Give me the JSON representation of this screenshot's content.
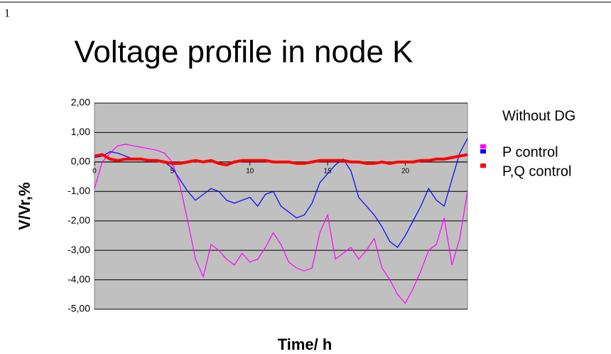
{
  "page_number": "1",
  "chart_data": {
    "type": "line",
    "title": "Voltage profile in node K",
    "x_label": "Time/ h",
    "y_label": "V/Vr,%",
    "x": [
      0,
      0.5,
      1,
      1.5,
      2,
      2.5,
      3,
      3.5,
      4,
      4.5,
      5,
      5.5,
      6,
      6.5,
      7,
      7.5,
      8,
      8.5,
      9,
      9.5,
      10,
      10.5,
      11,
      11.5,
      12,
      12.5,
      13,
      13.5,
      14,
      14.5,
      15,
      15.5,
      16,
      16.5,
      17,
      17.5,
      18,
      18.5,
      19,
      19.5,
      20,
      20.5,
      21,
      21.5,
      22,
      22.5,
      23,
      23.5,
      24
    ],
    "series": [
      {
        "name": "Without DG",
        "color": "#ff00ff",
        "values": [
          -0.9,
          0.0,
          0.3,
          0.55,
          0.6,
          0.55,
          0.5,
          0.45,
          0.4,
          0.3,
          0.0,
          -0.8,
          -2.0,
          -3.3,
          -3.9,
          -2.8,
          -3.0,
          -3.3,
          -3.5,
          -3.1,
          -3.4,
          -3.3,
          -2.9,
          -2.4,
          -2.8,
          -3.4,
          -3.6,
          -3.7,
          -3.6,
          -2.4,
          -1.8,
          -3.3,
          -3.1,
          -2.9,
          -3.3,
          -3.0,
          -2.6,
          -3.6,
          -4.0,
          -4.5,
          -4.8,
          -4.3,
          -3.7,
          -3.0,
          -2.8,
          -1.9,
          -3.5,
          -2.6,
          -1.0
        ]
      },
      {
        "name": "P control",
        "color": "#0000ff",
        "values": [
          0.15,
          0.2,
          0.35,
          0.3,
          0.2,
          0.1,
          0.1,
          0.05,
          0.05,
          0.0,
          -0.2,
          -0.6,
          -1.0,
          -1.3,
          -1.1,
          -0.9,
          -1.0,
          -1.3,
          -1.4,
          -1.3,
          -1.2,
          -1.5,
          -1.1,
          -1.0,
          -1.5,
          -1.7,
          -1.9,
          -1.8,
          -1.4,
          -0.7,
          -0.4,
          -0.1,
          0.1,
          -0.3,
          -1.2,
          -1.5,
          -1.8,
          -2.2,
          -2.7,
          -2.9,
          -2.5,
          -2.0,
          -1.5,
          -0.9,
          -1.3,
          -1.5,
          -0.6,
          0.3,
          0.8
        ]
      },
      {
        "name": "P,Q control",
        "color": "#ff0000",
        "values": [
          0.2,
          0.25,
          0.1,
          0.05,
          0.1,
          0.1,
          0.1,
          0.05,
          0.05,
          0.0,
          -0.05,
          -0.05,
          0.0,
          0.05,
          0.0,
          0.05,
          -0.05,
          -0.1,
          0.0,
          0.05,
          0.05,
          0.05,
          0.05,
          0.0,
          0.0,
          0.0,
          -0.05,
          -0.05,
          0.0,
          0.05,
          0.05,
          0.05,
          0.05,
          0.0,
          0.0,
          -0.05,
          -0.05,
          0.0,
          -0.05,
          0.0,
          0.0,
          0.0,
          0.05,
          0.05,
          0.1,
          0.1,
          0.15,
          0.2,
          0.25
        ]
      }
    ],
    "xlim": [
      0,
      24
    ],
    "xticks": [
      0,
      5,
      10,
      15,
      20
    ],
    "ylim": [
      -5,
      2
    ],
    "yticks": [
      {
        "value": 2,
        "label": "2,00"
      },
      {
        "value": 1,
        "label": "1,00"
      },
      {
        "value": 0,
        "label": "0,00"
      },
      {
        "value": -1,
        "label": "-1,00"
      },
      {
        "value": -2,
        "label": "-2,00"
      },
      {
        "value": -3,
        "label": "-3,00"
      },
      {
        "value": -4,
        "label": "-4,00"
      },
      {
        "value": -5,
        "label": "-5,00"
      }
    ],
    "grid": true,
    "plot_background": "#c0c0c0",
    "legend": "right"
  }
}
